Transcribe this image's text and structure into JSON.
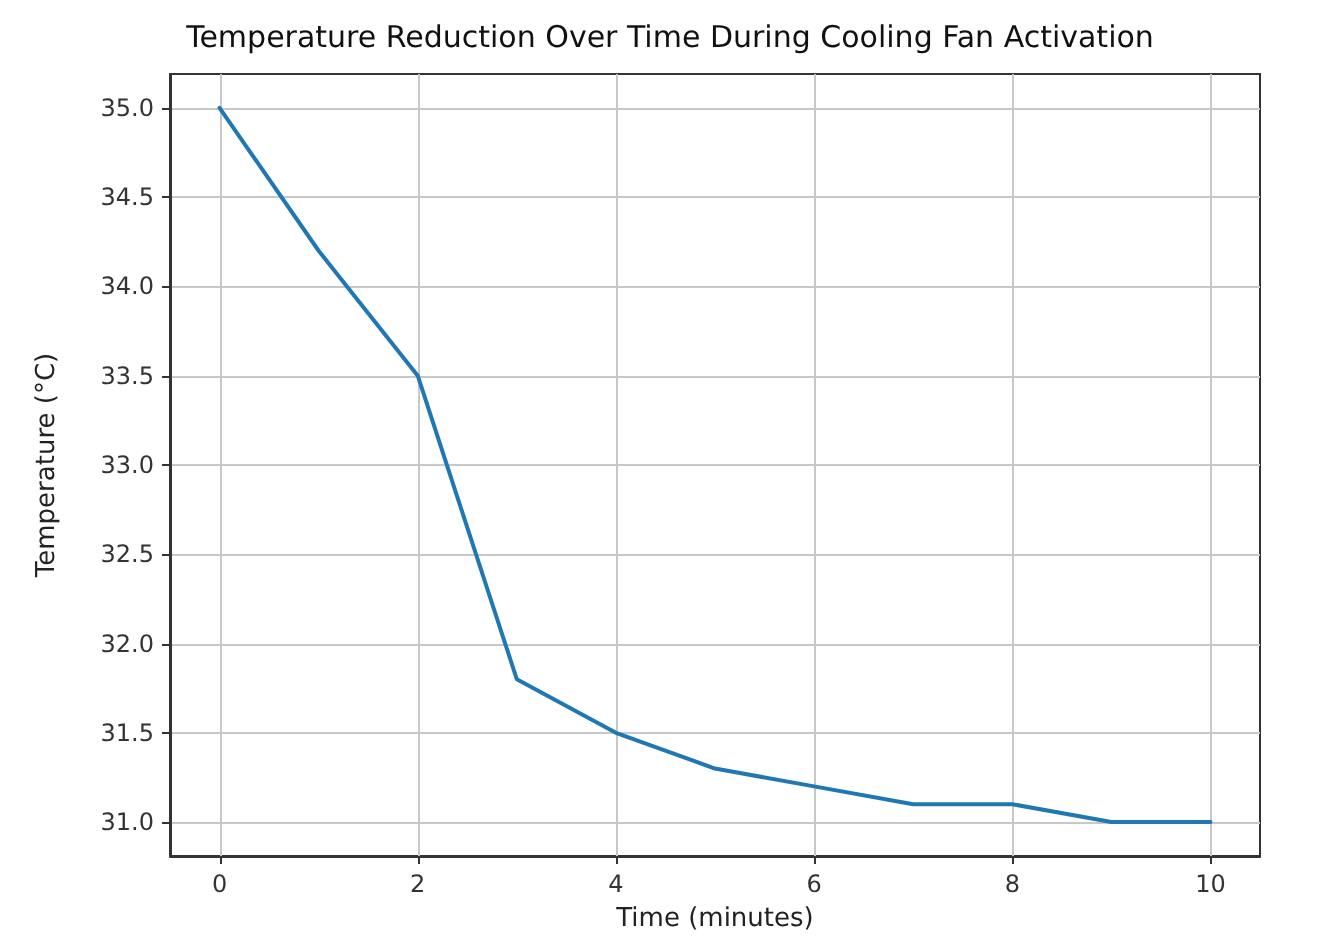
{
  "chart_data": {
    "type": "line",
    "title": "Temperature Reduction Over Time During Cooling Fan Activation",
    "xlabel": "Time (minutes)",
    "ylabel": "Temperature (°C)",
    "x": [
      0,
      1,
      2,
      3,
      4,
      5,
      6,
      7,
      8,
      9,
      10
    ],
    "series": [
      {
        "color": "#1f77b4",
        "values": [
          35.0,
          34.2,
          33.5,
          31.8,
          31.5,
          31.3,
          31.2,
          31.1,
          31.1,
          31.0,
          31.0
        ]
      }
    ],
    "xlim": [
      -0.5,
      10.5
    ],
    "xticks": [
      0,
      2,
      4,
      6,
      8,
      10
    ],
    "ylim": [
      30.81,
      35.19
    ],
    "yticks": [
      {
        "value": 31,
        "label": "31.0"
      },
      {
        "value": 31.5,
        "label": "31.5"
      },
      {
        "value": 32,
        "label": "32.0"
      },
      {
        "value": 32.5,
        "label": "32.5"
      },
      {
        "value": 33,
        "label": "33.0"
      },
      {
        "value": 33.5,
        "label": "33.5"
      },
      {
        "value": 34,
        "label": "34.0"
      },
      {
        "value": 34.5,
        "label": "34.5"
      },
      {
        "value": 35,
        "label": "35.0"
      }
    ],
    "grid": true,
    "marker": "none",
    "line_style": "solid"
  }
}
